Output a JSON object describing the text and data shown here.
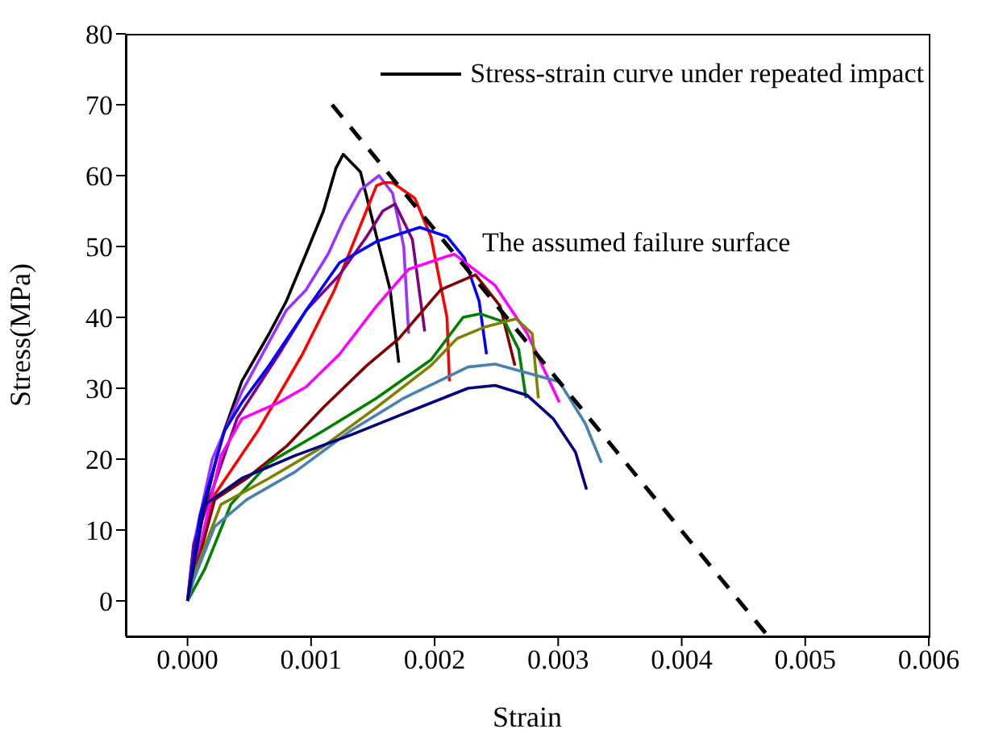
{
  "chart_data": {
    "type": "line",
    "xlabel": "Strain",
    "ylabel": "Stress(MPa)",
    "xlim": [
      -0.0005,
      0.006
    ],
    "xticks": [
      {
        "value": 0,
        "label": "0.000"
      },
      {
        "value": 0.001,
        "label": "0.001"
      },
      {
        "value": 0.002,
        "label": "0.002"
      },
      {
        "value": 0.003,
        "label": "0.003"
      },
      {
        "value": 0.004,
        "label": "0.004"
      },
      {
        "value": 0.005,
        "label": "0.005"
      },
      {
        "value": 0.006,
        "label": "0.006"
      }
    ],
    "ylim": [
      -5,
      80
    ],
    "yticks": [
      0,
      10,
      20,
      30,
      40,
      50,
      60,
      70,
      80
    ],
    "grid": false,
    "legend": "top right",
    "marker": "none",
    "annotations": [
      "The assumed failure surface"
    ],
    "series": [
      {
        "name": "Stress-strain curve under repeated impact",
        "color": "#000000",
        "x": [
          0,
          9e-05,
          0.00027,
          0.00044,
          0.00066,
          0.0008,
          0.00096,
          0.0011,
          0.0012,
          0.00126,
          0.0014,
          0.00153,
          0.00164,
          0.00171
        ],
        "values": [
          0,
          9.8,
          22.7,
          31,
          37.7,
          42.3,
          49,
          55,
          61,
          63,
          60.5,
          51.4,
          43.9,
          33.6
        ]
      },
      {
        "color": "#9933ff",
        "x": [
          0,
          5e-05,
          0.0002,
          0.00044,
          0.0008,
          0.00096,
          0.00114,
          0.00126,
          0.0014,
          0.00155,
          0.00166,
          0.00175,
          0.00179
        ],
        "values": [
          0,
          8,
          20,
          29.5,
          41,
          43.9,
          49,
          53.6,
          58,
          60,
          57.5,
          50,
          37.7
        ]
      },
      {
        "color": "#ff0000",
        "x": [
          0,
          0.00022,
          0.00057,
          0.00093,
          0.00119,
          0.0014,
          0.00153,
          0.00159,
          0.00166,
          0.00184,
          0.00197,
          0.0021,
          0.00212
        ],
        "values": [
          0,
          15,
          24,
          34.8,
          43.9,
          53,
          58.6,
          59,
          59,
          56.8,
          51.4,
          40,
          31
        ]
      },
      {
        "color": "#800080",
        "x": [
          0,
          5e-05,
          0.0004,
          0.00074,
          0.00096,
          0.00123,
          0.00145,
          0.00158,
          0.00168,
          0.00182,
          0.00192
        ],
        "values": [
          0,
          8,
          25.7,
          34.8,
          41,
          46,
          51.4,
          55,
          56,
          51,
          38
        ]
      },
      {
        "color": "#0000ff",
        "x": [
          0,
          0.0001,
          0.0003,
          0.00044,
          0.00066,
          0.00096,
          0.00123,
          0.00153,
          0.00188,
          0.0021,
          0.00224,
          0.00236,
          0.00242
        ],
        "values": [
          0,
          12,
          24,
          28,
          33.2,
          41,
          47.7,
          50.7,
          52.7,
          51.4,
          48.4,
          42.3,
          34.8
        ]
      },
      {
        "color": "#ff00ff",
        "x": [
          0,
          0.00027,
          0.00044,
          0.00074,
          0.00096,
          0.00123,
          0.00153,
          0.00179,
          0.0021,
          0.00216,
          0.00249,
          0.00275,
          0.00301
        ],
        "values": [
          0,
          20.5,
          25.7,
          28,
          30.2,
          34.8,
          41.6,
          46.8,
          48.6,
          48.9,
          44.5,
          37.7,
          28
        ]
      },
      {
        "color": "#800000",
        "x": [
          0,
          0.00022,
          0.00048,
          0.0008,
          0.0011,
          0.00145,
          0.00171,
          0.00205,
          0.00233,
          0.00253,
          0.00265
        ],
        "values": [
          0,
          14.3,
          17.3,
          21.8,
          27.3,
          33.2,
          37,
          43.9,
          46,
          41.6,
          33.2
        ]
      },
      {
        "color": "#008000",
        "x": [
          0,
          0.00014,
          0.00035,
          0.00066,
          0.0011,
          0.00153,
          0.00197,
          0.00223,
          0.00237,
          0.00257,
          0.00268,
          0.00274
        ],
        "values": [
          0,
          4.5,
          13.6,
          19.5,
          24,
          28.6,
          34,
          40,
          40.5,
          39.3,
          35.5,
          28.6
        ]
      },
      {
        "color": "#808000",
        "x": [
          0,
          5e-05,
          0.00027,
          0.00066,
          0.0011,
          0.00153,
          0.00197,
          0.00218,
          0.0024,
          0.00266,
          0.00279,
          0.00284
        ],
        "values": [
          0,
          3.6,
          13.6,
          17.3,
          21.8,
          27.3,
          33.2,
          37,
          38.6,
          39.8,
          37.7,
          28.6
        ]
      },
      {
        "color": "#4682b4",
        "x": [
          0,
          5e-05,
          0.00022,
          0.00048,
          0.00087,
          0.00132,
          0.00175,
          0.00227,
          0.00249,
          0.00301,
          0.00322,
          0.00335
        ],
        "values": [
          0,
          3,
          10.5,
          14.3,
          18.2,
          24,
          28.6,
          33,
          33.4,
          30.9,
          25,
          19.5
        ]
      },
      {
        "color": "#000080",
        "x": [
          0,
          0.00014,
          0.00044,
          0.00087,
          0.00132,
          0.00175,
          0.00227,
          0.00249,
          0.00275,
          0.00296,
          0.00314,
          0.00323
        ],
        "values": [
          0,
          13.6,
          17.3,
          20.5,
          23.4,
          26.4,
          30,
          30.4,
          29,
          25.7,
          21,
          15.7
        ]
      },
      {
        "color": "#000000",
        "line_style": "dashed",
        "x": [
          0.00117,
          0.0047
        ],
        "values": [
          70,
          -5
        ]
      }
    ]
  }
}
